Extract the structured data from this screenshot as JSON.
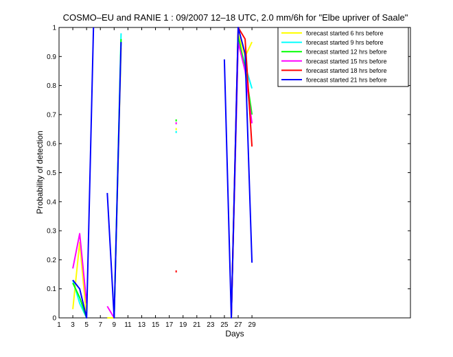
{
  "chart_data": {
    "type": "line",
    "title": "COSMO–EU and RANIE 1 : 09/2007 12–18 UTC, 2.0 mm/6h for \"Elbe upriver of Saale\"",
    "xlabel": "Days",
    "ylabel": "Probability of detection",
    "xlim": [
      1,
      52
    ],
    "ylim": [
      0,
      1
    ],
    "xticks": [
      1,
      3,
      5,
      7,
      9,
      11,
      13,
      15,
      17,
      19,
      21,
      23,
      25,
      27,
      29
    ],
    "yticks": [
      0,
      0.1,
      0.2,
      0.3,
      0.4,
      0.5,
      0.6,
      0.7,
      0.8,
      0.9,
      1
    ],
    "ytick_labels": [
      "0",
      "0.1",
      "0.2",
      "0.3",
      "0.4",
      "0.5",
      "0.6",
      "0.7",
      "0.8",
      "0.9",
      "1"
    ],
    "legend_position": "top-right",
    "series": [
      {
        "name": "forecast started 6 hrs before",
        "color": "#ffff00",
        "segments": [
          [
            [
              3,
              0.03
            ],
            [
              4,
              0.26
            ],
            [
              5,
              0.0
            ]
          ],
          [
            [
              8,
              0.0
            ],
            [
              9,
              0.0
            ],
            [
              10,
              0.93
            ]
          ],
          [
            [
              18,
              0.65
            ]
          ],
          [
            [
              26,
              0.0
            ],
            [
              27,
              0.98
            ],
            [
              28,
              0.9
            ],
            [
              29,
              0.95
            ]
          ]
        ]
      },
      {
        "name": "forecast started 9 hrs before",
        "color": "#00ffff",
        "segments": [
          [
            [
              3,
              0.13
            ],
            [
              4,
              0.05
            ],
            [
              5,
              0.0
            ]
          ],
          [
            [
              9,
              0.0
            ],
            [
              10,
              0.98
            ]
          ],
          [
            [
              18,
              0.64
            ]
          ],
          [
            [
              26,
              0.0
            ],
            [
              27,
              0.96
            ],
            [
              28,
              0.87
            ],
            [
              29,
              0.79
            ]
          ]
        ]
      },
      {
        "name": "forecast started 12 hrs before",
        "color": "#00ff00",
        "segments": [
          [
            [
              3,
              0.12
            ],
            [
              4,
              0.07
            ],
            [
              5,
              0.0
            ]
          ],
          [
            [
              9,
              0.0
            ],
            [
              10,
              0.96
            ]
          ],
          [
            [
              18,
              0.68
            ]
          ],
          [
            [
              26,
              0.0
            ],
            [
              27,
              0.97
            ],
            [
              28,
              0.86
            ],
            [
              29,
              0.7
            ]
          ]
        ]
      },
      {
        "name": "forecast started 15 hrs before",
        "color": "#ff00ff",
        "segments": [
          [
            [
              3,
              0.17
            ],
            [
              4,
              0.29
            ],
            [
              5,
              0.05
            ]
          ],
          [
            [
              8,
              0.04
            ],
            [
              9,
              0.0
            ]
          ],
          [
            [
              18,
              0.67
            ]
          ],
          [
            [
              26,
              0.0
            ],
            [
              27,
              0.95
            ],
            [
              28,
              0.85
            ],
            [
              29,
              0.67
            ]
          ]
        ]
      },
      {
        "name": "forecast started 18 hrs before",
        "color": "#ff0000",
        "segments": [
          [
            [
              18,
              0.16
            ]
          ],
          [
            [
              26,
              0.0
            ],
            [
              27,
              1.0
            ],
            [
              28,
              0.96
            ],
            [
              29,
              0.59
            ]
          ]
        ]
      },
      {
        "name": "forecast started 21 hrs before",
        "color": "#0000ff",
        "segments": [
          [
            [
              3,
              0.13
            ],
            [
              4,
              0.1
            ],
            [
              5,
              0.0
            ],
            [
              6,
              1.0
            ]
          ],
          [
            [
              8,
              0.43
            ],
            [
              9,
              0.0
            ],
            [
              10,
              0.95
            ]
          ],
          [
            [
              25,
              0.89
            ],
            [
              26,
              0.0
            ],
            [
              27,
              1.0
            ],
            [
              28,
              0.91
            ],
            [
              29,
              0.19
            ]
          ]
        ]
      }
    ]
  }
}
